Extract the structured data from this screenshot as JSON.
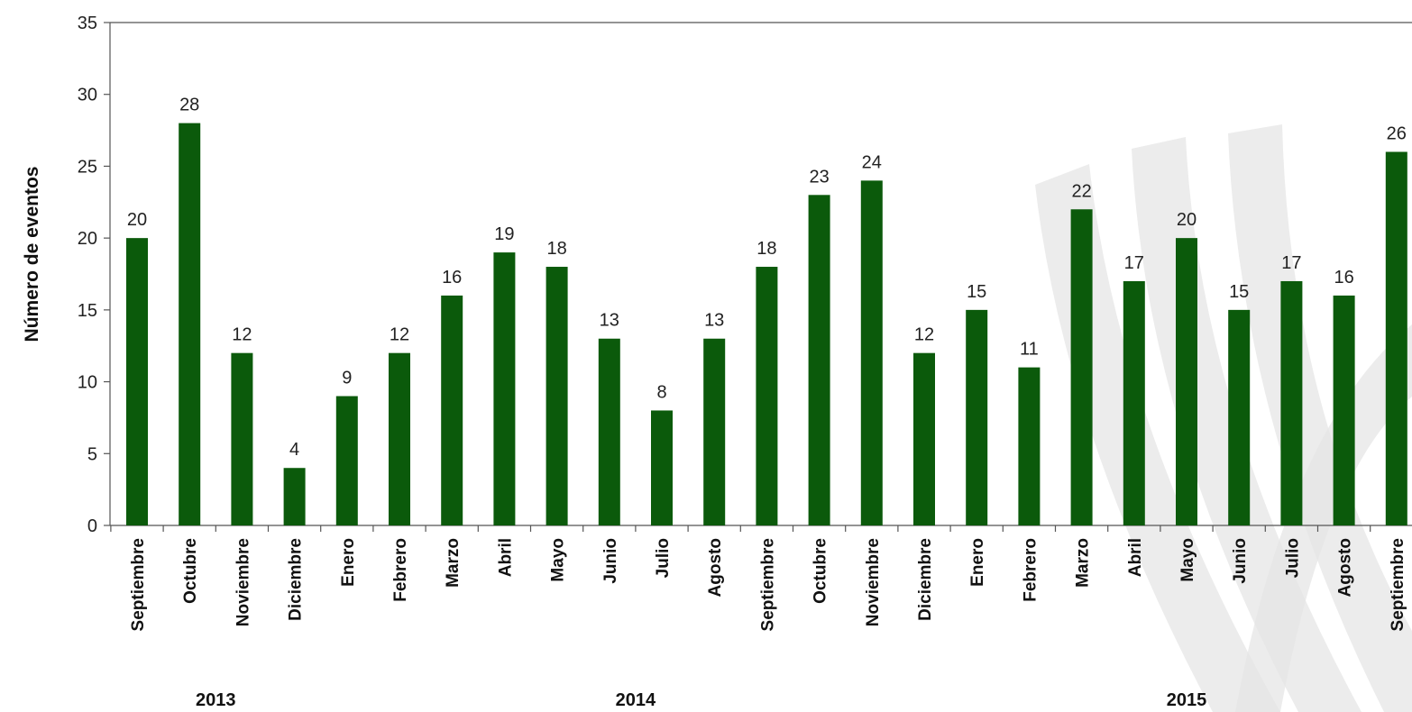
{
  "chart_data": {
    "type": "bar",
    "title": "",
    "xlabel": "",
    "ylabel": "Número de eventos",
    "ylim": [
      0,
      35
    ],
    "yticks": [
      0,
      5,
      10,
      15,
      20,
      25,
      30,
      35
    ],
    "grid": false,
    "legend": "none",
    "categories": [
      "Septiembre",
      "Octubre",
      "Noviembre",
      "Diciembre",
      "Enero",
      "Febrero",
      "Marzo",
      "Abril",
      "Mayo",
      "Junio",
      "Julio",
      "Agosto",
      "Septiembre",
      "Octubre",
      "Noviembre",
      "Diciembre",
      "Enero",
      "Febrero",
      "Marzo",
      "Abril",
      "Mayo",
      "Junio",
      "Julio",
      "Agosto",
      "Septiembre"
    ],
    "values": [
      20,
      28,
      12,
      4,
      9,
      12,
      16,
      19,
      18,
      13,
      8,
      13,
      18,
      23,
      24,
      12,
      15,
      11,
      22,
      17,
      20,
      15,
      17,
      16,
      26
    ],
    "year_groups": [
      {
        "label": "2013",
        "start": 0,
        "end": 3
      },
      {
        "label": "2014",
        "start": 4,
        "end": 15
      },
      {
        "label": "2015",
        "start": 16,
        "end": 24
      }
    ],
    "bar_color": "#0b5a0b",
    "watermark_color": "#e6e6e6"
  }
}
